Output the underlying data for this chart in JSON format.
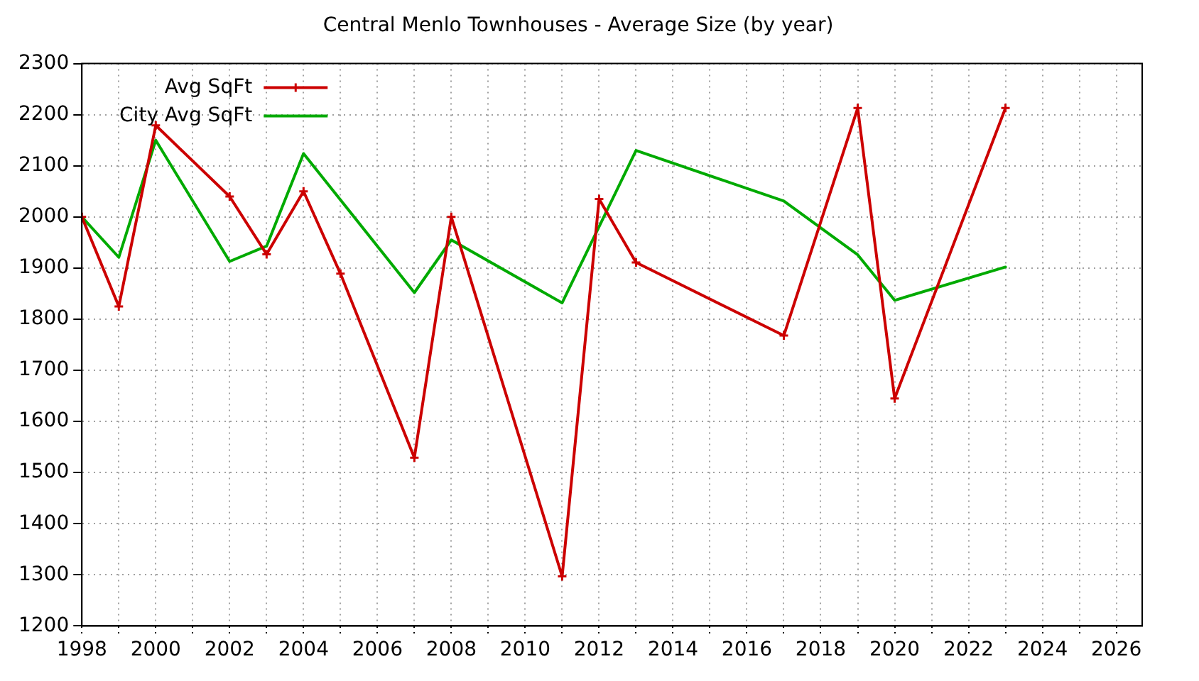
{
  "chart_data": {
    "type": "line",
    "title": "Central Menlo Townhouses - Average Size (by year)",
    "series": [
      {
        "name": "Avg SqFt",
        "color": "#cc0000",
        "marker": "cross",
        "x": [
          1998,
          1999,
          2000,
          2002,
          2003,
          2004,
          2005,
          2007,
          2008,
          2011,
          2012,
          2013,
          2017,
          2019,
          2020,
          2023
        ],
        "values": [
          2000,
          1825,
          2179,
          2040,
          1927,
          2050,
          1889,
          1529,
          2000,
          1297,
          2035,
          1911,
          1768,
          2213,
          1645,
          2213
        ]
      },
      {
        "name": "City Avg SqFt",
        "color": "#00aa00",
        "marker": "none",
        "x": [
          1998,
          1999,
          2000,
          2002,
          2003,
          2004,
          2007,
          2008,
          2011,
          2013,
          2017,
          2019,
          2020,
          2023
        ],
        "values": [
          2000,
          1921,
          2150,
          1913,
          1943,
          2124,
          1852,
          1955,
          1832,
          2130,
          2031,
          1926,
          1837,
          1902
        ]
      }
    ],
    "xlim": [
      1998,
      2026.7
    ],
    "xticks": [
      1998,
      {
        "value": 1999,
        "label": null
      },
      2000,
      {
        "value": 2001,
        "label": null
      },
      2002,
      {
        "value": 2003,
        "label": null
      },
      2004,
      {
        "value": 2005,
        "label": null
      },
      2006,
      {
        "value": 2007,
        "label": null
      },
      2008,
      {
        "value": 2009,
        "label": null
      },
      2010,
      {
        "value": 2011,
        "label": null
      },
      2012,
      {
        "value": 2013,
        "label": null
      },
      2014,
      {
        "value": 2015,
        "label": null
      },
      2016,
      {
        "value": 2017,
        "label": null
      },
      2018,
      {
        "value": 2019,
        "label": null
      },
      2020,
      {
        "value": 2021,
        "label": null
      },
      2022,
      {
        "value": 2023,
        "label": null
      },
      2024,
      {
        "value": 2025,
        "label": null
      },
      2026
    ],
    "ylim": [
      1200,
      2300
    ],
    "yticks": [
      1200,
      1300,
      1400,
      1500,
      1600,
      1700,
      1800,
      1900,
      2000,
      2100,
      2200,
      2300
    ],
    "grid": true,
    "legend": "top left",
    "line_style": "solid"
  }
}
